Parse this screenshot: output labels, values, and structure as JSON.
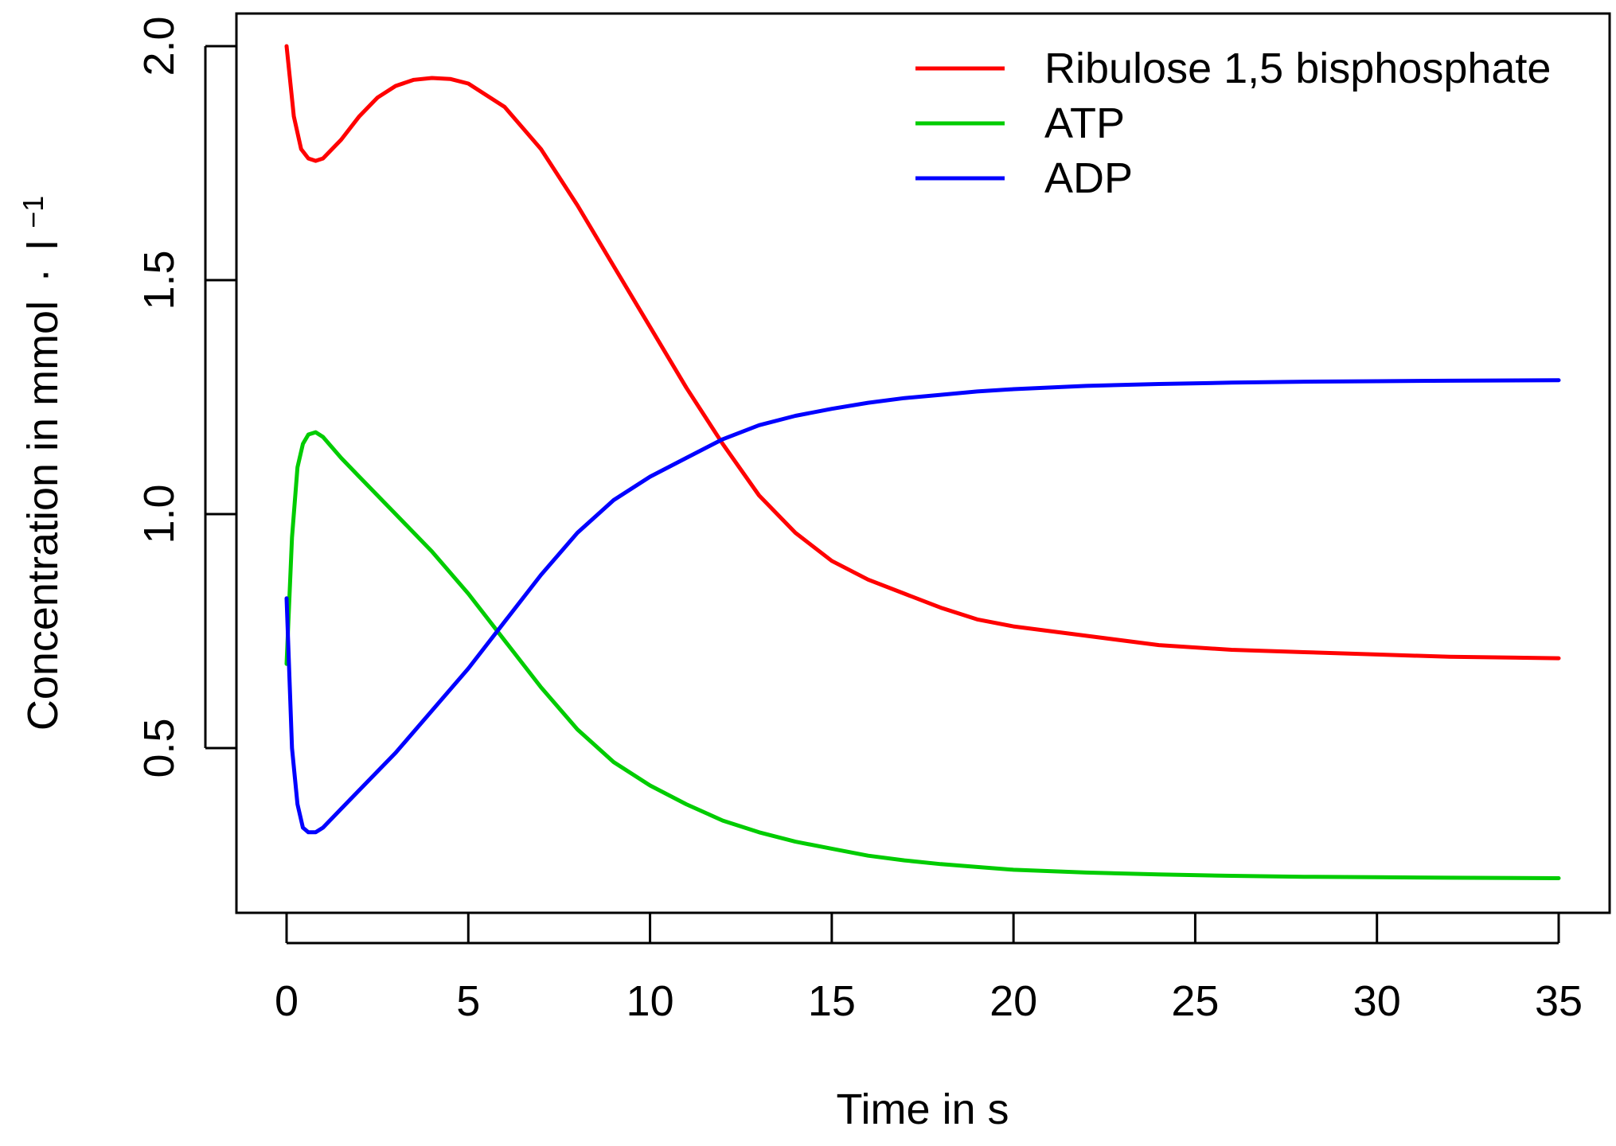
{
  "chart_data": {
    "type": "line",
    "title": "",
    "xlabel": "Time in s",
    "ylabel": {
      "main": "Concentration in mmol",
      "dot": "·",
      "unit": "l",
      "exponent": "−1"
    },
    "xlim": [
      0,
      35
    ],
    "ylim": [
      0.2,
      2.0
    ],
    "xticks": [
      0,
      5,
      10,
      15,
      20,
      25,
      30,
      35
    ],
    "xtick_labels": [
      "0",
      "5",
      "10",
      "15",
      "20",
      "25",
      "30",
      "35"
    ],
    "yticks": [
      0.5,
      1.0,
      1.5,
      2.0
    ],
    "ytick_labels": [
      "0.5",
      "1.0",
      "1.5",
      "2.0"
    ],
    "grid": false,
    "legend_position": "top-right",
    "series": [
      {
        "name": "Ribulose 1,5 bisphosphate",
        "color": "#ff0000",
        "x": [
          0,
          0.2,
          0.4,
          0.6,
          0.8,
          1.0,
          1.5,
          2,
          2.5,
          3,
          3.5,
          4,
          4.5,
          5,
          6,
          7,
          8,
          9,
          10,
          11,
          12,
          13,
          14,
          15,
          16,
          17,
          18,
          19,
          20,
          22,
          24,
          26,
          28,
          30,
          32,
          35
        ],
        "y": [
          2.0,
          1.85,
          1.78,
          1.76,
          1.755,
          1.76,
          1.8,
          1.85,
          1.89,
          1.915,
          1.928,
          1.932,
          1.93,
          1.92,
          1.87,
          1.78,
          1.66,
          1.53,
          1.4,
          1.27,
          1.15,
          1.04,
          0.96,
          0.9,
          0.86,
          0.83,
          0.8,
          0.775,
          0.76,
          0.74,
          0.72,
          0.71,
          0.705,
          0.7,
          0.695,
          0.692
        ]
      },
      {
        "name": "ATP",
        "color": "#00cc00",
        "x": [
          0,
          0.15,
          0.3,
          0.45,
          0.6,
          0.8,
          1.0,
          1.5,
          2,
          3,
          4,
          5,
          6,
          7,
          8,
          9,
          10,
          11,
          12,
          13,
          14,
          15,
          16,
          17,
          18,
          19,
          20,
          22,
          24,
          26,
          28,
          30,
          32,
          35
        ],
        "y": [
          0.68,
          0.95,
          1.1,
          1.15,
          1.17,
          1.175,
          1.165,
          1.12,
          1.08,
          1.0,
          0.92,
          0.83,
          0.73,
          0.63,
          0.54,
          0.47,
          0.42,
          0.38,
          0.345,
          0.32,
          0.3,
          0.285,
          0.27,
          0.26,
          0.252,
          0.246,
          0.24,
          0.234,
          0.23,
          0.227,
          0.225,
          0.224,
          0.223,
          0.222
        ]
      },
      {
        "name": "ADP",
        "color": "#0000ff",
        "x": [
          0,
          0.15,
          0.3,
          0.45,
          0.6,
          0.8,
          1.0,
          1.5,
          2,
          3,
          4,
          5,
          6,
          7,
          8,
          9,
          10,
          11,
          12,
          13,
          14,
          15,
          16,
          17,
          18,
          19,
          20,
          22,
          24,
          26,
          28,
          30,
          32,
          35
        ],
        "y": [
          0.82,
          0.5,
          0.38,
          0.33,
          0.32,
          0.32,
          0.33,
          0.37,
          0.41,
          0.49,
          0.58,
          0.67,
          0.77,
          0.87,
          0.96,
          1.03,
          1.08,
          1.12,
          1.16,
          1.19,
          1.21,
          1.225,
          1.238,
          1.248,
          1.255,
          1.262,
          1.267,
          1.274,
          1.278,
          1.281,
          1.283,
          1.284,
          1.285,
          1.286
        ]
      }
    ]
  }
}
